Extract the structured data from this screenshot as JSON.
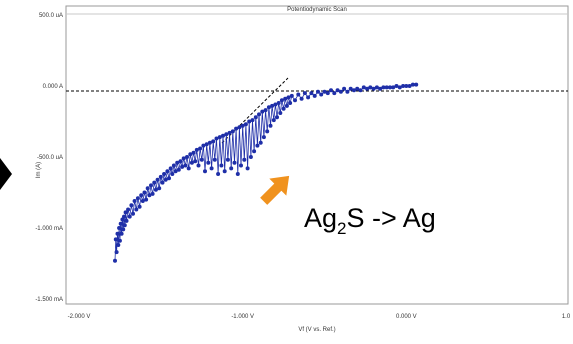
{
  "chart_data": {
    "type": "scatter",
    "title": "Potentiodynamic Scan",
    "xlabel": "Vf (V vs. Ref.)",
    "ylabel": "Im (A)",
    "x_tick_labels": [
      "-2.000 V",
      "-1.000 V",
      "0.000 V",
      "1.0"
    ],
    "x_ticks": [
      -2.0,
      -1.0,
      0.0,
      1.0
    ],
    "y_tick_labels": [
      "500.0 uA",
      "0.000 A",
      "-500.0 uA",
      "-1.000 mA",
      "-1.500 mA"
    ],
    "y_ticks": [
      0.0005,
      0.0,
      -0.0005,
      -0.001,
      -0.0015
    ],
    "xlim": [
      -2.0,
      1.0
    ],
    "ylim": [
      -0.0015,
      0.0005
    ],
    "grid": false,
    "annotation": {
      "text_main": "Ag",
      "text_sub": "2",
      "text_rest": "S -> Ag"
    },
    "series": [
      {
        "color": "#1f2fa8",
        "points": [
          [
            -1.78,
            -0.00123
          ],
          [
            -1.775,
            -0.00108
          ],
          [
            -1.77,
            -0.00117
          ],
          [
            -1.765,
            -0.00104
          ],
          [
            -1.76,
            -0.00112
          ],
          [
            -1.755,
            -0.001
          ],
          [
            -1.75,
            -0.00109
          ],
          [
            -1.745,
            -0.00097
          ],
          [
            -1.74,
            -0.00104
          ],
          [
            -1.735,
            -0.00094
          ],
          [
            -1.73,
            -0.00101
          ],
          [
            -1.725,
            -0.00092
          ],
          [
            -1.72,
            -0.00098
          ],
          [
            -1.715,
            -0.00089
          ],
          [
            -1.71,
            -0.00095
          ],
          [
            -1.7,
            -0.00087
          ],
          [
            -1.69,
            -0.00092
          ],
          [
            -1.68,
            -0.00084
          ],
          [
            -1.67,
            -0.0009
          ],
          [
            -1.66,
            -0.00081
          ],
          [
            -1.65,
            -0.00087
          ],
          [
            -1.64,
            -0.00079
          ],
          [
            -1.63,
            -0.00085
          ],
          [
            -1.62,
            -0.00077
          ],
          [
            -1.61,
            -0.00081
          ],
          [
            -1.6,
            -0.00075
          ],
          [
            -1.59,
            -0.0008
          ],
          [
            -1.58,
            -0.00072
          ],
          [
            -1.57,
            -0.00077
          ],
          [
            -1.56,
            -0.0007
          ],
          [
            -1.55,
            -0.00076
          ],
          [
            -1.54,
            -0.00068
          ],
          [
            -1.53,
            -0.00073
          ],
          [
            -1.52,
            -0.00066
          ],
          [
            -1.51,
            -0.00072
          ],
          [
            -1.5,
            -0.00064
          ],
          [
            -1.49,
            -0.00068
          ],
          [
            -1.48,
            -0.00062
          ],
          [
            -1.47,
            -0.00066
          ],
          [
            -1.46,
            -0.0006
          ],
          [
            -1.45,
            -0.00065
          ],
          [
            -1.44,
            -0.00058
          ],
          [
            -1.43,
            -0.00062
          ],
          [
            -1.42,
            -0.00056
          ],
          [
            -1.41,
            -0.0006
          ],
          [
            -1.4,
            -0.00054
          ],
          [
            -1.39,
            -0.00059
          ],
          [
            -1.38,
            -0.00053
          ],
          [
            -1.37,
            -0.00057
          ],
          [
            -1.36,
            -0.00051
          ],
          [
            -1.35,
            -0.00056
          ],
          [
            -1.34,
            -0.0005
          ],
          [
            -1.33,
            -0.00058
          ],
          [
            -1.32,
            -0.00048
          ],
          [
            -1.31,
            -0.00054
          ],
          [
            -1.3,
            -0.00047
          ],
          [
            -1.29,
            -0.00053
          ],
          [
            -1.28,
            -0.00045
          ],
          [
            -1.27,
            -0.00056
          ],
          [
            -1.26,
            -0.00044
          ],
          [
            -1.25,
            -0.00052
          ],
          [
            -1.24,
            -0.00042
          ],
          [
            -1.23,
            -0.0006
          ],
          [
            -1.22,
            -0.00041
          ],
          [
            -1.21,
            -0.00054
          ],
          [
            -1.2,
            -0.0004
          ],
          [
            -1.19,
            -0.00058
          ],
          [
            -1.18,
            -0.00039
          ],
          [
            -1.17,
            -0.00052
          ],
          [
            -1.16,
            -0.00037
          ],
          [
            -1.15,
            -0.00062
          ],
          [
            -1.14,
            -0.00036
          ],
          [
            -1.13,
            -0.00056
          ],
          [
            -1.12,
            -0.00035
          ],
          [
            -1.11,
            -0.0006
          ],
          [
            -1.1,
            -0.00034
          ],
          [
            -1.09,
            -0.00052
          ],
          [
            -1.08,
            -0.00033
          ],
          [
            -1.07,
            -0.00058
          ],
          [
            -1.06,
            -0.00032
          ],
          [
            -1.05,
            -0.00054
          ],
          [
            -1.04,
            -0.0003
          ],
          [
            -1.03,
            -0.00062
          ],
          [
            -1.02,
            -0.00029
          ],
          [
            -1.01,
            -0.00056
          ],
          [
            -1.0,
            -0.00028
          ],
          [
            -0.99,
            -0.00052
          ],
          [
            -0.98,
            -0.00027
          ],
          [
            -0.97,
            -0.00058
          ],
          [
            -0.96,
            -0.00025
          ],
          [
            -0.95,
            -0.0005
          ],
          [
            -0.94,
            -0.00024
          ],
          [
            -0.93,
            -0.00046
          ],
          [
            -0.92,
            -0.00022
          ],
          [
            -0.91,
            -0.00042
          ],
          [
            -0.9,
            -0.0002
          ],
          [
            -0.89,
            -0.0004
          ],
          [
            -0.88,
            -0.00018
          ],
          [
            -0.87,
            -0.00036
          ],
          [
            -0.86,
            -0.00017
          ],
          [
            -0.85,
            -0.00032
          ],
          [
            -0.84,
            -0.00015
          ],
          [
            -0.83,
            -0.00028
          ],
          [
            -0.82,
            -0.00014
          ],
          [
            -0.81,
            -0.00024
          ],
          [
            -0.8,
            -0.00013
          ],
          [
            -0.79,
            -0.00022
          ],
          [
            -0.78,
            -0.00012
          ],
          [
            -0.77,
            -0.00019
          ],
          [
            -0.76,
            -0.0001
          ],
          [
            -0.75,
            -0.00016
          ],
          [
            -0.74,
            -9e-05
          ],
          [
            -0.73,
            -0.00014
          ],
          [
            -0.72,
            -8e-05
          ],
          [
            -0.71,
            -0.00012
          ],
          [
            -0.7,
            -7e-05
          ],
          [
            -0.68,
            -0.0001
          ],
          [
            -0.66,
            -6e-05
          ],
          [
            -0.64,
            -9e-05
          ],
          [
            -0.62,
            -5e-05
          ],
          [
            -0.6,
            -8e-05
          ],
          [
            -0.58,
            -5e-05
          ],
          [
            -0.56,
            -7e-05
          ],
          [
            -0.54,
            -4e-05
          ],
          [
            -0.52,
            -6e-05
          ],
          [
            -0.5,
            -4e-05
          ],
          [
            -0.48,
            -5e-05
          ],
          [
            -0.46,
            -3e-05
          ],
          [
            -0.44,
            -5e-05
          ],
          [
            -0.42,
            -3e-05
          ],
          [
            -0.4,
            -4e-05
          ],
          [
            -0.38,
            -2e-05
          ],
          [
            -0.36,
            -4e-05
          ],
          [
            -0.34,
            -2e-05
          ],
          [
            -0.32,
            -3e-05
          ],
          [
            -0.3,
            -2e-05
          ],
          [
            -0.28,
            -3e-05
          ],
          [
            -0.26,
            -1e-05
          ],
          [
            -0.24,
            -2e-05
          ],
          [
            -0.22,
            -1e-05
          ],
          [
            -0.2,
            -2e-05
          ],
          [
            -0.18,
            -1e-05
          ],
          [
            -0.16,
            -2e-05
          ],
          [
            -0.14,
            -1e-05
          ],
          [
            -0.12,
            -1e-05
          ],
          [
            -0.1,
            -1e-05
          ],
          [
            -0.08,
            -1e-05
          ],
          [
            -0.06,
            0.0
          ],
          [
            -0.04,
            -1e-05
          ],
          [
            -0.02,
            0.0
          ],
          [
            0.0,
            0.0
          ],
          [
            0.02,
            0.0
          ],
          [
            0.04,
            1e-05
          ],
          [
            0.06,
            1e-05
          ]
        ]
      }
    ]
  }
}
